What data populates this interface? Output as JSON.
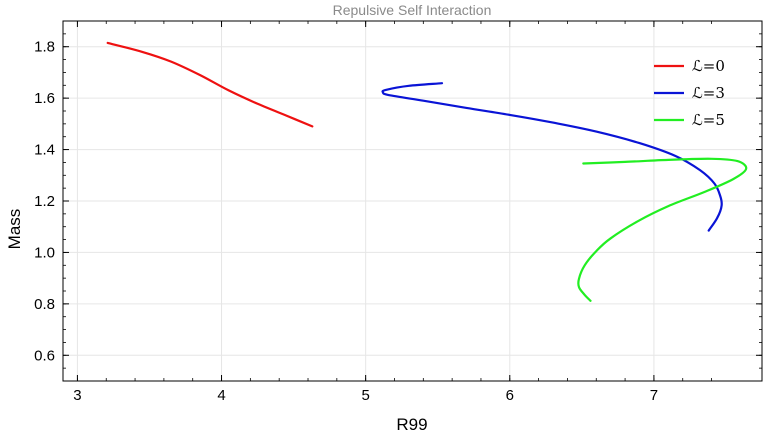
{
  "chart_data": {
    "type": "line",
    "title": "Repulsive Self Interaction",
    "xlabel": "R99",
    "ylabel": "Mass",
    "xlim": [
      2.9,
      7.75
    ],
    "ylim": [
      0.5,
      1.9
    ],
    "xticks": [
      3,
      4,
      5,
      6,
      7
    ],
    "xtick_labels": [
      "3",
      "4",
      "5",
      "6",
      "7"
    ],
    "yticks": [
      0.6,
      0.8,
      1.0,
      1.2,
      1.4,
      1.6,
      1.8
    ],
    "ytick_labels": [
      "0.6",
      "0.8",
      "1.0",
      "1.2",
      "1.4",
      "1.6",
      "1.8"
    ],
    "grid": true,
    "legend_position": "top-right",
    "series": [
      {
        "name": "ℒ=0",
        "color": "#ee1111",
        "points": [
          [
            3.21,
            1.815
          ],
          [
            3.45,
            1.78
          ],
          [
            3.65,
            1.742
          ],
          [
            3.85,
            1.69
          ],
          [
            4.05,
            1.63
          ],
          [
            4.25,
            1.578
          ],
          [
            4.45,
            1.532
          ],
          [
            4.63,
            1.49
          ]
        ]
      },
      {
        "name": "ℒ=3",
        "color": "#0a14d6",
        "points": [
          [
            5.53,
            1.658
          ],
          [
            5.3,
            1.648
          ],
          [
            5.14,
            1.632
          ],
          [
            5.12,
            1.622
          ],
          [
            5.16,
            1.612
          ],
          [
            5.4,
            1.59
          ],
          [
            5.7,
            1.562
          ],
          [
            6.0,
            1.535
          ],
          [
            6.3,
            1.505
          ],
          [
            6.6,
            1.47
          ],
          [
            6.9,
            1.425
          ],
          [
            7.15,
            1.375
          ],
          [
            7.32,
            1.32
          ],
          [
            7.42,
            1.268
          ],
          [
            7.46,
            1.22
          ],
          [
            7.47,
            1.182
          ],
          [
            7.44,
            1.135
          ],
          [
            7.38,
            1.085
          ]
        ]
      },
      {
        "name": "ℒ=5",
        "color": "#22ee22",
        "points": [
          [
            6.51,
            1.346
          ],
          [
            6.8,
            1.352
          ],
          [
            7.1,
            1.36
          ],
          [
            7.4,
            1.364
          ],
          [
            7.58,
            1.355
          ],
          [
            7.64,
            1.325
          ],
          [
            7.55,
            1.285
          ],
          [
            7.35,
            1.235
          ],
          [
            7.1,
            1.18
          ],
          [
            6.9,
            1.125
          ],
          [
            6.7,
            1.055
          ],
          [
            6.6,
            1.005
          ],
          [
            6.52,
            0.95
          ],
          [
            6.48,
            0.898
          ],
          [
            6.48,
            0.865
          ],
          [
            6.52,
            0.835
          ],
          [
            6.56,
            0.812
          ]
        ]
      }
    ]
  }
}
